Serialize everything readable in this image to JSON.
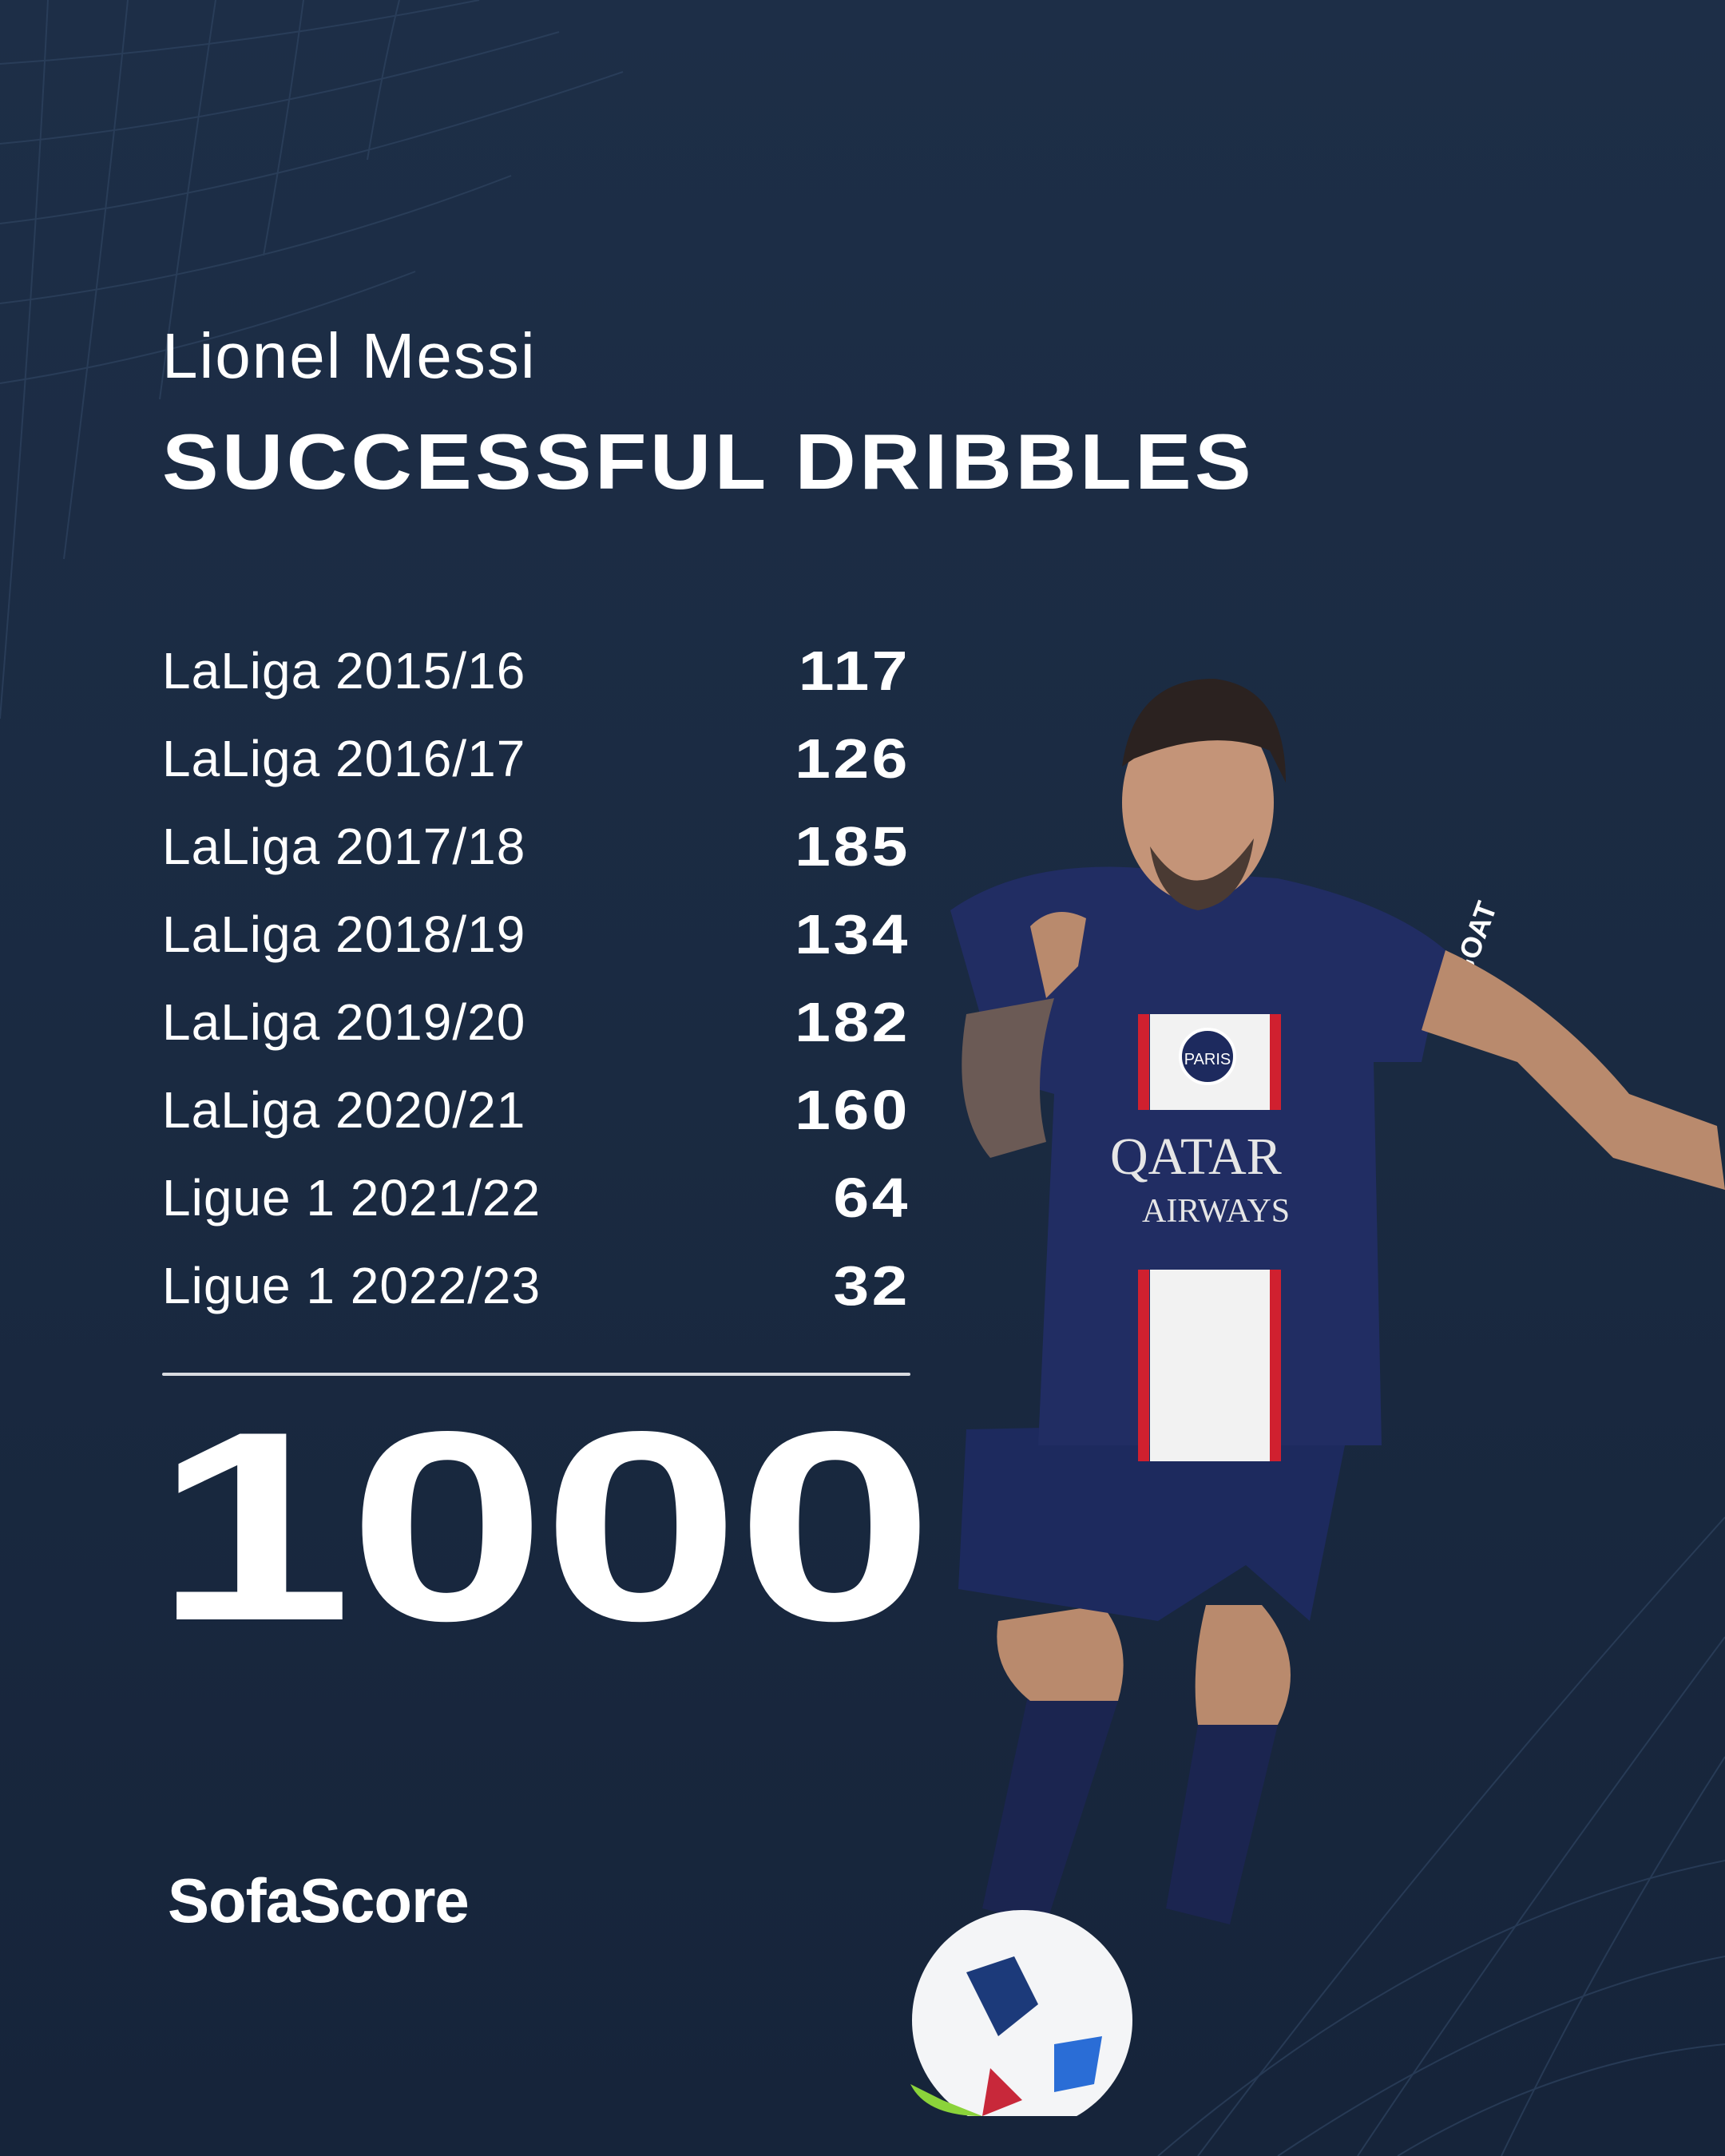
{
  "player_name": "Lionel Messi",
  "stat_title": "SUCCESSFUL DRIBBLES",
  "seasons": [
    {
      "label": "LaLiga 2015/16",
      "value": "117"
    },
    {
      "label": "LaLiga 2016/17",
      "value": "126"
    },
    {
      "label": "LaLiga 2017/18",
      "value": "185"
    },
    {
      "label": "LaLiga 2018/19",
      "value": "134"
    },
    {
      "label": "LaLiga 2019/20",
      "value": "182"
    },
    {
      "label": "LaLiga 2020/21",
      "value": "160"
    },
    {
      "label": "Ligue 1 2021/22",
      "value": "64"
    },
    {
      "label": "Ligue 1 2022/23",
      "value": "32"
    }
  ],
  "total": "1000",
  "brand": "SofaScore",
  "photo_text": {
    "sponsor_line1": "QATAR",
    "sponsor_line2": "AIRWAYS",
    "sleeve": "GOAT",
    "crest": "PARIS"
  },
  "colors": {
    "background": "#1c2d45",
    "text": "#ffffff",
    "jersey": "#1f2a5c",
    "stripe_red": "#d0202f"
  }
}
